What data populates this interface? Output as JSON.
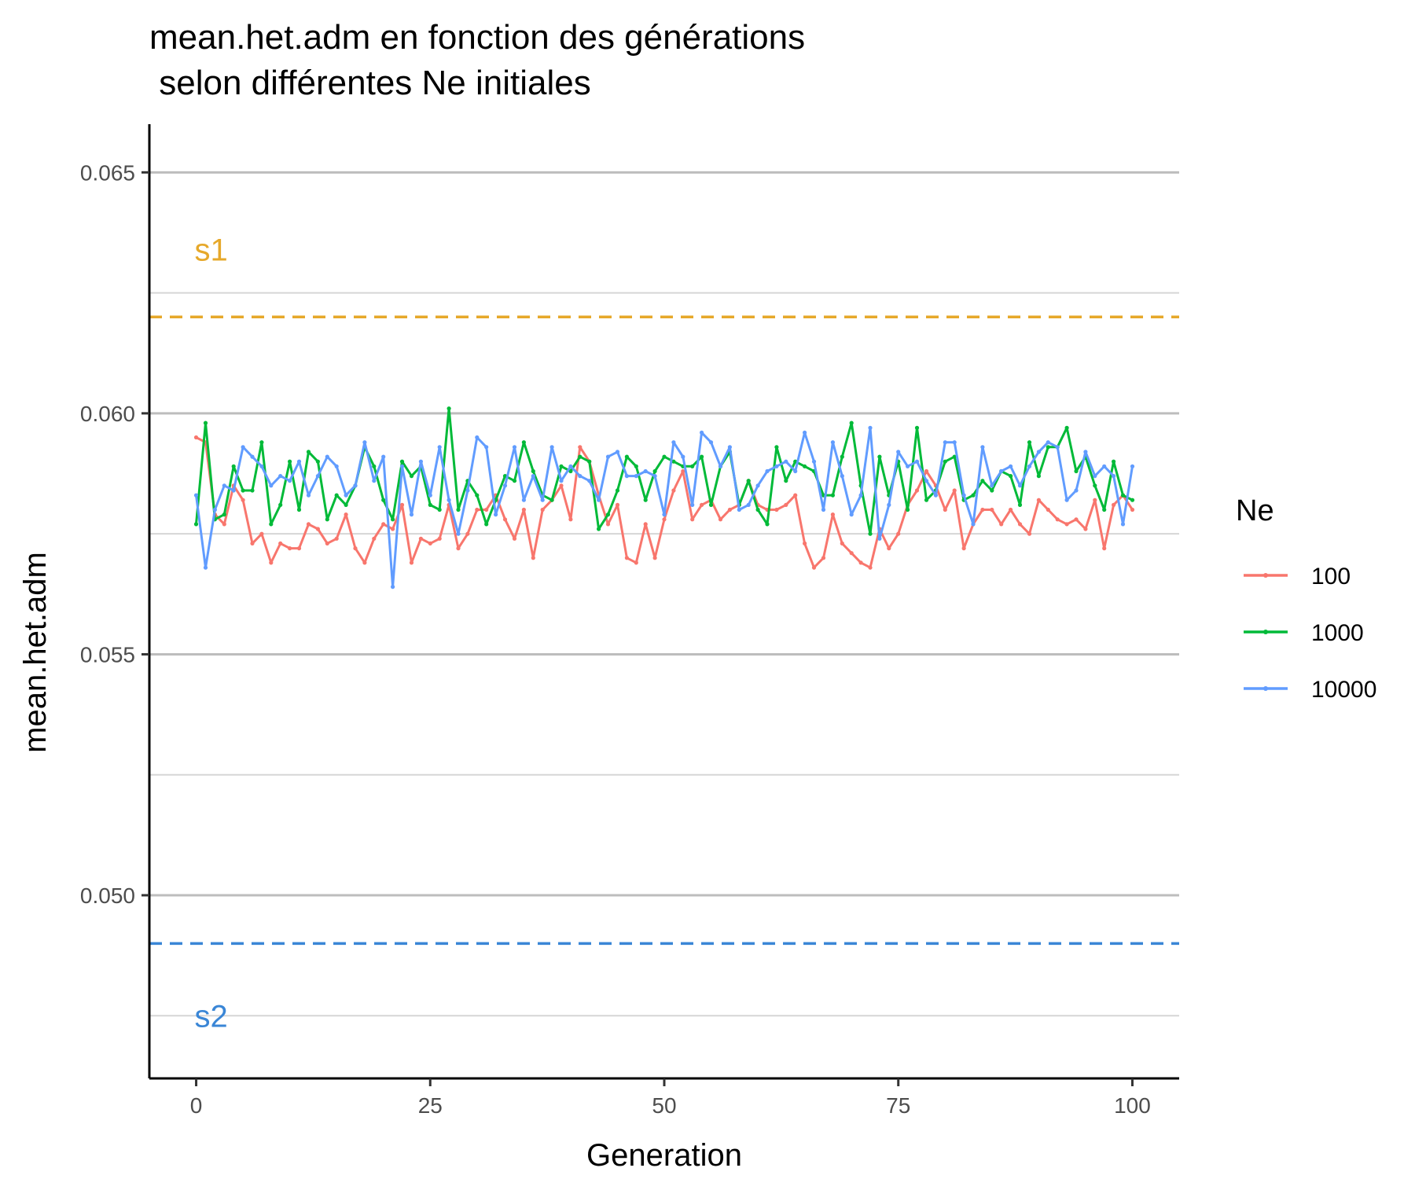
{
  "chart_data": {
    "type": "line",
    "title_line1": "mean.het.adm en fonction des générations",
    "title_line2": " selon différentes Ne initiales",
    "xlabel": "Generation",
    "ylabel": "mean.het.adm",
    "xlim": [
      -5,
      105
    ],
    "ylim": [
      0.0462,
      0.066
    ],
    "x_ticks": [
      0,
      25,
      50,
      75,
      100
    ],
    "x_tick_labels": [
      "0",
      "25",
      "50",
      "75",
      "100"
    ],
    "y_ticks": [
      0.05,
      0.055,
      0.06,
      0.065
    ],
    "y_tick_labels": [
      "0.050",
      "0.055",
      "0.060",
      "0.065"
    ],
    "y_minor_ticks": [
      0.0475,
      0.0525,
      0.0575,
      0.0625
    ],
    "grid": "horizontal",
    "legend": {
      "title": "Ne",
      "placement": "right",
      "entries": [
        "100",
        "1000",
        "10000"
      ]
    },
    "reference_lines": [
      {
        "label": "s1",
        "y": 0.062,
        "color": "#E6A82A",
        "style": "dashed",
        "label_y": 0.0634
      },
      {
        "label": "s2",
        "y": 0.049,
        "color": "#3A86D6",
        "style": "dashed",
        "label_y": 0.0475
      }
    ],
    "series": [
      {
        "name": "100",
        "color": "#F8766D",
        "x": [
          0,
          1,
          2,
          3,
          4,
          5,
          6,
          7,
          8,
          9,
          10,
          11,
          12,
          13,
          14,
          15,
          16,
          17,
          18,
          19,
          20,
          21,
          22,
          23,
          24,
          25,
          26,
          27,
          28,
          29,
          30,
          31,
          32,
          33,
          34,
          35,
          36,
          37,
          38,
          39,
          40,
          41,
          42,
          43,
          44,
          45,
          46,
          47,
          48,
          49,
          50,
          51,
          52,
          53,
          54,
          55,
          56,
          57,
          58,
          59,
          60,
          61,
          62,
          63,
          64,
          65,
          66,
          67,
          68,
          69,
          70,
          71,
          72,
          73,
          74,
          75,
          76,
          77,
          78,
          79,
          80,
          81,
          82,
          83,
          84,
          85,
          86,
          87,
          88,
          89,
          90,
          91,
          92,
          93,
          94,
          95,
          96,
          97,
          98,
          99,
          100
        ],
        "y": [
          0.0595,
          0.0594,
          0.0579,
          0.0577,
          0.0585,
          0.0582,
          0.0573,
          0.0575,
          0.0569,
          0.0573,
          0.0572,
          0.0572,
          0.0577,
          0.0576,
          0.0573,
          0.0574,
          0.0579,
          0.0572,
          0.0569,
          0.0574,
          0.0577,
          0.0576,
          0.0581,
          0.0569,
          0.0574,
          0.0573,
          0.0574,
          0.0581,
          0.0572,
          0.0575,
          0.058,
          0.058,
          0.0583,
          0.0578,
          0.0574,
          0.058,
          0.057,
          0.058,
          0.0582,
          0.0585,
          0.0578,
          0.0593,
          0.059,
          0.0583,
          0.0577,
          0.0581,
          0.057,
          0.0569,
          0.0577,
          0.057,
          0.0578,
          0.0584,
          0.0588,
          0.0578,
          0.0581,
          0.0582,
          0.0578,
          0.058,
          0.0581,
          0.0586,
          0.0581,
          0.058,
          0.058,
          0.0581,
          0.0583,
          0.0573,
          0.0568,
          0.057,
          0.0579,
          0.0573,
          0.0571,
          0.0569,
          0.0568,
          0.0576,
          0.0572,
          0.0575,
          0.0581,
          0.0584,
          0.0588,
          0.0585,
          0.058,
          0.0584,
          0.0572,
          0.0577,
          0.058,
          0.058,
          0.0577,
          0.058,
          0.0577,
          0.0575,
          0.0582,
          0.058,
          0.0578,
          0.0577,
          0.0578,
          0.0576,
          0.0582,
          0.0572,
          0.0581,
          0.0583,
          0.058
        ]
      },
      {
        "name": "1000",
        "color": "#00BA38",
        "x": [
          0,
          1,
          2,
          3,
          4,
          5,
          6,
          7,
          8,
          9,
          10,
          11,
          12,
          13,
          14,
          15,
          16,
          17,
          18,
          19,
          20,
          21,
          22,
          23,
          24,
          25,
          26,
          27,
          28,
          29,
          30,
          31,
          32,
          33,
          34,
          35,
          36,
          37,
          38,
          39,
          40,
          41,
          42,
          43,
          44,
          45,
          46,
          47,
          48,
          49,
          50,
          51,
          52,
          53,
          54,
          55,
          56,
          57,
          58,
          59,
          60,
          61,
          62,
          63,
          64,
          65,
          66,
          67,
          68,
          69,
          70,
          71,
          72,
          73,
          74,
          75,
          76,
          77,
          78,
          79,
          80,
          81,
          82,
          83,
          84,
          85,
          86,
          87,
          88,
          89,
          90,
          91,
          92,
          93,
          94,
          95,
          96,
          97,
          98,
          99,
          100
        ],
        "y": [
          0.0577,
          0.0598,
          0.0578,
          0.0579,
          0.0589,
          0.0584,
          0.0584,
          0.0594,
          0.0577,
          0.0581,
          0.059,
          0.058,
          0.0592,
          0.059,
          0.0578,
          0.0583,
          0.0581,
          0.0585,
          0.0593,
          0.0589,
          0.0582,
          0.0578,
          0.059,
          0.0587,
          0.0589,
          0.0581,
          0.058,
          0.0601,
          0.058,
          0.0586,
          0.0583,
          0.0577,
          0.0582,
          0.0587,
          0.0586,
          0.0594,
          0.0588,
          0.0583,
          0.0582,
          0.0589,
          0.0588,
          0.0591,
          0.059,
          0.0576,
          0.0579,
          0.0584,
          0.0591,
          0.0589,
          0.0582,
          0.0588,
          0.0591,
          0.059,
          0.0589,
          0.0589,
          0.0591,
          0.0581,
          0.0589,
          0.0592,
          0.0581,
          0.0586,
          0.058,
          0.0577,
          0.0593,
          0.0586,
          0.059,
          0.0589,
          0.0588,
          0.0583,
          0.0583,
          0.0591,
          0.0598,
          0.0585,
          0.0575,
          0.0591,
          0.0583,
          0.059,
          0.058,
          0.0597,
          0.0582,
          0.0584,
          0.059,
          0.0591,
          0.0582,
          0.0583,
          0.0586,
          0.0584,
          0.0588,
          0.0587,
          0.0581,
          0.0594,
          0.0587,
          0.0593,
          0.0593,
          0.0597,
          0.0588,
          0.0591,
          0.0585,
          0.058,
          0.059,
          0.0583,
          0.0582
        ]
      },
      {
        "name": "10000",
        "color": "#619CFF",
        "x": [
          0,
          1,
          2,
          3,
          4,
          5,
          6,
          7,
          8,
          9,
          10,
          11,
          12,
          13,
          14,
          15,
          16,
          17,
          18,
          19,
          20,
          21,
          22,
          23,
          24,
          25,
          26,
          27,
          28,
          29,
          30,
          31,
          32,
          33,
          34,
          35,
          36,
          37,
          38,
          39,
          40,
          41,
          42,
          43,
          44,
          45,
          46,
          47,
          48,
          49,
          50,
          51,
          52,
          53,
          54,
          55,
          56,
          57,
          58,
          59,
          60,
          61,
          62,
          63,
          64,
          65,
          66,
          67,
          68,
          69,
          70,
          71,
          72,
          73,
          74,
          75,
          76,
          77,
          78,
          79,
          80,
          81,
          82,
          83,
          84,
          85,
          86,
          87,
          88,
          89,
          90,
          91,
          92,
          93,
          94,
          95,
          96,
          97,
          98,
          99,
          100
        ],
        "y": [
          0.0583,
          0.0568,
          0.058,
          0.0585,
          0.0584,
          0.0593,
          0.0591,
          0.0589,
          0.0585,
          0.0587,
          0.0586,
          0.059,
          0.0583,
          0.0587,
          0.0591,
          0.0589,
          0.0583,
          0.0585,
          0.0594,
          0.0586,
          0.0591,
          0.0564,
          0.0589,
          0.0579,
          0.059,
          0.0583,
          0.0593,
          0.0582,
          0.0575,
          0.0584,
          0.0595,
          0.0593,
          0.0579,
          0.0585,
          0.0593,
          0.0582,
          0.0587,
          0.0582,
          0.0593,
          0.0586,
          0.0589,
          0.0587,
          0.0586,
          0.0582,
          0.0591,
          0.0592,
          0.0587,
          0.0587,
          0.0588,
          0.0587,
          0.0579,
          0.0594,
          0.0591,
          0.0581,
          0.0596,
          0.0594,
          0.0589,
          0.0593,
          0.058,
          0.0581,
          0.0585,
          0.0588,
          0.0589,
          0.059,
          0.0588,
          0.0596,
          0.059,
          0.058,
          0.0594,
          0.0587,
          0.0579,
          0.0583,
          0.0597,
          0.0574,
          0.0581,
          0.0592,
          0.0589,
          0.059,
          0.0586,
          0.0583,
          0.0594,
          0.0594,
          0.0583,
          0.0577,
          0.0593,
          0.0585,
          0.0588,
          0.0589,
          0.0585,
          0.0589,
          0.0592,
          0.0594,
          0.0593,
          0.0582,
          0.0584,
          0.0592,
          0.0587,
          0.0589,
          0.0587,
          0.0577,
          0.0589
        ]
      }
    ]
  }
}
